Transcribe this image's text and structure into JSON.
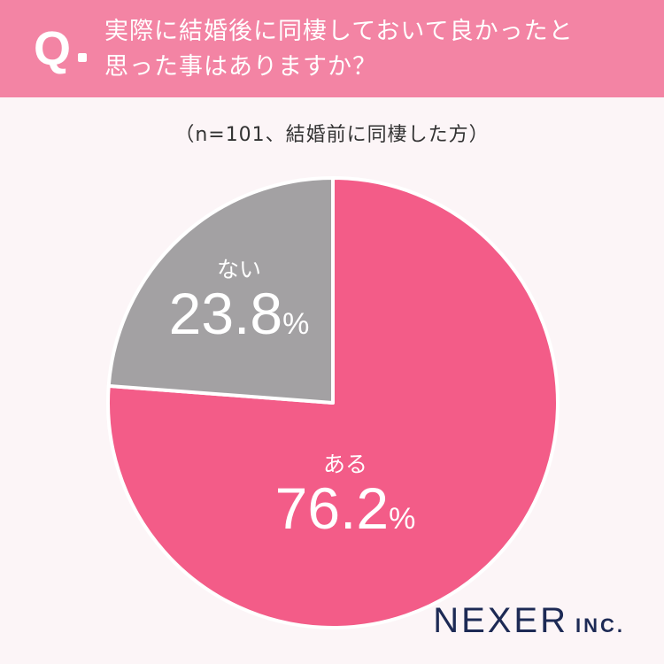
{
  "header": {
    "q_mark": "Q",
    "question_line1": "実際に結婚後に同棲しておいて良かったと",
    "question_line2": "思った事はありますか？"
  },
  "subtitle": "（n=101、結婚前に同棲した方）",
  "chart_data": {
    "type": "pie",
    "title": "",
    "slices": [
      {
        "label": "ある",
        "value": 76.2,
        "value_text": "76.2",
        "unit": "%",
        "color": "#f35c88"
      },
      {
        "label": "ない",
        "value": 23.8,
        "value_text": "23.8",
        "unit": "%",
        "color": "#a3a1a3"
      }
    ],
    "start": "12 o'clock",
    "direction": "clockwise"
  },
  "logo": {
    "name": "NEXER",
    "suffix": "INC."
  }
}
